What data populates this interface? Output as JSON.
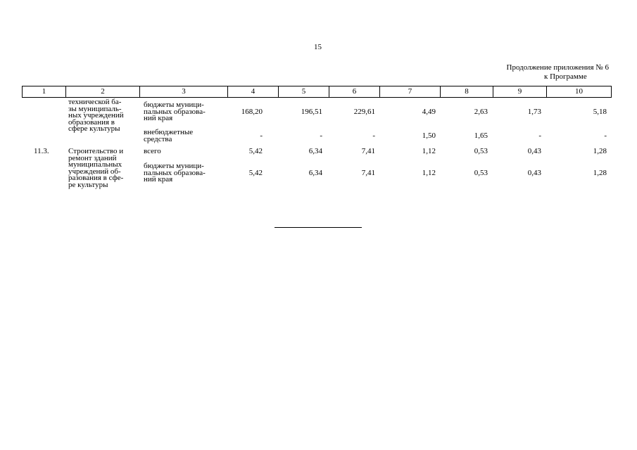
{
  "header": {
    "page_number": "15",
    "continuation": "Продолжение приложения № 6",
    "continuation_sub": "к Программе"
  },
  "table": {
    "columns": [
      "1",
      "2",
      "3",
      "4",
      "5",
      "6",
      "7",
      "8",
      "9",
      "10"
    ],
    "rows": [
      {
        "description": "технической ба-\nзы муниципаль-\nных учреждений\nобразования в\nсфере культуры",
        "source": "бюджеты муници-\nпальных образова-\nний края",
        "values": [
          "168,20",
          "196,51",
          "229,61",
          "4,49",
          "2,63",
          "1,73",
          "5,18"
        ]
      },
      {
        "source": "внебюджетные\nсредства",
        "values": [
          "-",
          "-",
          "-",
          "1,50",
          "1,65",
          "-",
          "-"
        ]
      },
      {
        "number": "11.3.",
        "description": "Строительство и\nремонт зданий\nмуниципальных\nучреждений об-\nразования в сфе-\nре культуры",
        "source": "всего",
        "values": [
          "5,42",
          "6,34",
          "7,41",
          "1,12",
          "0,53",
          "0,43",
          "1,28"
        ]
      },
      {
        "source": "бюджеты муници-\nпальных образова-\nний края",
        "values": [
          "5,42",
          "6,34",
          "7,41",
          "1,12",
          "0,53",
          "0,43",
          "1,28"
        ]
      }
    ]
  }
}
